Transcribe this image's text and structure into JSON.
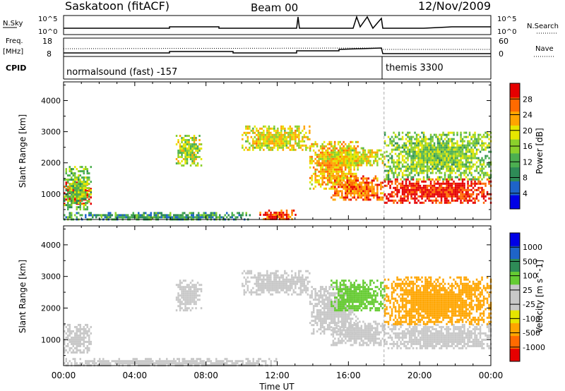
{
  "header": {
    "title": "Saskatoon (fitACF)",
    "beam": "Beam 00",
    "date": "12/Nov/2009"
  },
  "strips": {
    "nsky_label": "N.Sky",
    "nsky_ticks": [
      "10^5",
      "10^0"
    ],
    "nsearch_label": "N.Search",
    "nsearch_ticks": [
      "10^5",
      "10^0"
    ],
    "freq_label_line1": "Freq.",
    "freq_label_line2": "[MHz]",
    "freq_ticks": [
      "18",
      "8"
    ],
    "nave_label": "Nave",
    "nave_ticks": [
      "60",
      "0"
    ],
    "cpid_label": "CPID",
    "cpid_segments": [
      "normalsound (fast) -157",
      "themis 3300"
    ]
  },
  "colors": {
    "power": [
      "#0000e6",
      "#1e64c8",
      "#2e8b57",
      "#4caf50",
      "#8bd12c",
      "#e6e600",
      "#ffa500",
      "#ff6a00",
      "#e60000"
    ],
    "velocity": [
      "#e60000",
      "#ff6a00",
      "#ffa500",
      "#e6e600",
      "#c8c8c8",
      "#c8c8c8",
      "#66cc33",
      "#2e8b57",
      "#1e64c8",
      "#0000e6"
    ]
  },
  "chart_data": [
    {
      "type": "heatmap",
      "title": "Power",
      "xlabel": "Time UT",
      "ylabel": "Slant Range [km]",
      "xlim": [
        "00:00",
        "24:00"
      ],
      "ylim": [
        180,
        4600
      ],
      "x_ticks": [
        "00:00",
        "04:00",
        "08:00",
        "12:00",
        "16:00",
        "20:00",
        "00:00"
      ],
      "y_ticks": [
        1000,
        2000,
        3000,
        4000
      ],
      "colorbar_label": "Power [dB]",
      "colorbar_ticks": [
        4,
        8,
        12,
        16,
        20,
        24,
        28
      ],
      "regions": [
        {
          "t": [
            0.0,
            1.5
          ],
          "r": [
            700,
            1400
          ],
          "value": 28
        },
        {
          "t": [
            0.0,
            1.5
          ],
          "r": [
            500,
            1900
          ],
          "value": 14
        },
        {
          "t": [
            0.0,
            10.5
          ],
          "r": [
            180,
            420
          ],
          "value": 10
        },
        {
          "t": [
            6.3,
            7.7
          ],
          "r": [
            1900,
            2900
          ],
          "value": 16
        },
        {
          "t": [
            10.0,
            13.8
          ],
          "r": [
            2400,
            3200
          ],
          "value": 18
        },
        {
          "t": [
            11.0,
            13.0
          ],
          "r": [
            180,
            500
          ],
          "value": 26
        },
        {
          "t": [
            13.8,
            16.5
          ],
          "r": [
            1200,
            2700
          ],
          "value": 20
        },
        {
          "t": [
            15.0,
            18.0
          ],
          "r": [
            800,
            1600
          ],
          "value": 24
        },
        {
          "t": [
            15.0,
            18.0
          ],
          "r": [
            1900,
            2500
          ],
          "value": 18
        },
        {
          "t": [
            18.0,
            24.0
          ],
          "r": [
            700,
            1500
          ],
          "value": 28
        },
        {
          "t": [
            18.0,
            24.0
          ],
          "r": [
            1500,
            3000
          ],
          "value": 14
        }
      ]
    },
    {
      "type": "heatmap",
      "title": "Velocity",
      "xlabel": "Time UT",
      "ylabel": "Slant Range [km]",
      "xlim": [
        "00:00",
        "24:00"
      ],
      "ylim": [
        180,
        4600
      ],
      "x_ticks": [
        "00:00",
        "04:00",
        "08:00",
        "12:00",
        "16:00",
        "20:00",
        "00:00"
      ],
      "y_ticks": [
        1000,
        2000,
        3000,
        4000
      ],
      "colorbar_label": "Velocity [m s^-1]",
      "colorbar_ticks": [
        1000,
        500,
        100,
        25,
        -25,
        -100,
        -500,
        -1000
      ],
      "regions": [
        {
          "t": [
            0.0,
            1.5
          ],
          "r": [
            600,
            1500
          ],
          "value": 0
        },
        {
          "t": [
            0.0,
            12.0
          ],
          "r": [
            180,
            420
          ],
          "value": 0
        },
        {
          "t": [
            6.3,
            7.7
          ],
          "r": [
            1900,
            2900
          ],
          "value": 0
        },
        {
          "t": [
            10.0,
            13.8
          ],
          "r": [
            2400,
            3200
          ],
          "value": 0
        },
        {
          "t": [
            13.8,
            16.5
          ],
          "r": [
            1200,
            2700
          ],
          "value": 0
        },
        {
          "t": [
            15.0,
            18.0
          ],
          "r": [
            800,
            1600
          ],
          "value": 0
        },
        {
          "t": [
            15.0,
            18.0
          ],
          "r": [
            1900,
            2900
          ],
          "value": 100
        },
        {
          "t": [
            18.0,
            24.0
          ],
          "r": [
            700,
            1500
          ],
          "value": 0
        },
        {
          "t": [
            18.0,
            24.0
          ],
          "r": [
            1500,
            3000
          ],
          "value": -100
        }
      ]
    }
  ]
}
